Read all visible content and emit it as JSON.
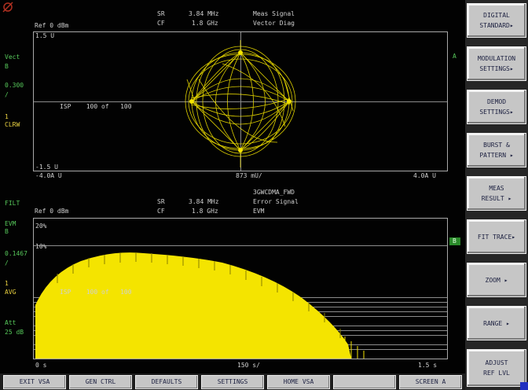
{
  "top_panel": {
    "hdr_left": "Ref 0 dBm",
    "hdr_sr_label": "SR",
    "hdr_sr_value": "3.84 MHz",
    "hdr_cf_label": "CF",
    "hdr_cf_value": "1.8 GHz",
    "hdr_title1": "Meas Signal",
    "hdr_title2": "Vector Diag",
    "side_trace": "Vect",
    "side_b": "B",
    "side_scale": "0.300",
    "side_slash": "/",
    "side_1": "1",
    "side_clrw": "CLRW",
    "y_top": "1.5 U",
    "y_bottom": "-1.5 U",
    "x_left": "-4.0A U",
    "x_center": "873 mU/",
    "x_right": "4.0A U",
    "inner_label": "ISP    100 of   100",
    "marker_a": "A"
  },
  "bottom_panel": {
    "filt": "FILT",
    "hdr_left": "Ref 0 dBm",
    "hdr_sr_label": "SR",
    "hdr_sr_value": "3.84 MHz",
    "hdr_cf_label": "CF",
    "hdr_cf_value": "1.8 GHz",
    "hdr_title0": "3GWCDMA_FWD",
    "hdr_title1": "Error Signal",
    "hdr_title2": "EVM",
    "side_evm": "EVM",
    "side_b": "B",
    "side_scale": "0.1467",
    "side_slash": "/",
    "side_1": "1",
    "side_avg": "AVG",
    "side_att": "Att",
    "side_att_val": "25 dB",
    "y_label_top": "20%",
    "y_label_2": "10%",
    "inner_label": "ISP    100 of   100",
    "x_left": "0 s",
    "x_center": "150 s/",
    "x_right": "1.5 s",
    "marker_b": "B"
  },
  "softkeys": [
    {
      "l1": "DIGITAL",
      "l2": "STANDARD▸"
    },
    {
      "l1": "MODULATION",
      "l2": "SETTINGS▸"
    },
    {
      "l1": "DEMOD",
      "l2": "SETTINGS▸"
    },
    {
      "l1": "BURST &",
      "l2": "PATTERN ▸"
    },
    {
      "l1": "MEAS",
      "l2": "RESULT ▸"
    },
    {
      "l1": "FIT TRACE▸",
      "l2": ""
    },
    {
      "l1": "ZOOM  ▸",
      "l2": ""
    },
    {
      "l1": "RANGE  ▸",
      "l2": ""
    },
    {
      "l1": "ADJUST",
      "l2": "REF LVL"
    }
  ],
  "hotkeys": [
    "EXIT VSA",
    "GEN CTRL",
    "DEFAULTS",
    "SETTINGS",
    "HOME VSA",
    "",
    "SCREEN A"
  ],
  "colors": {
    "trace": "#f4e400",
    "softkey_bg": "#c6c6c6",
    "graticule": "#a8a8a8"
  }
}
